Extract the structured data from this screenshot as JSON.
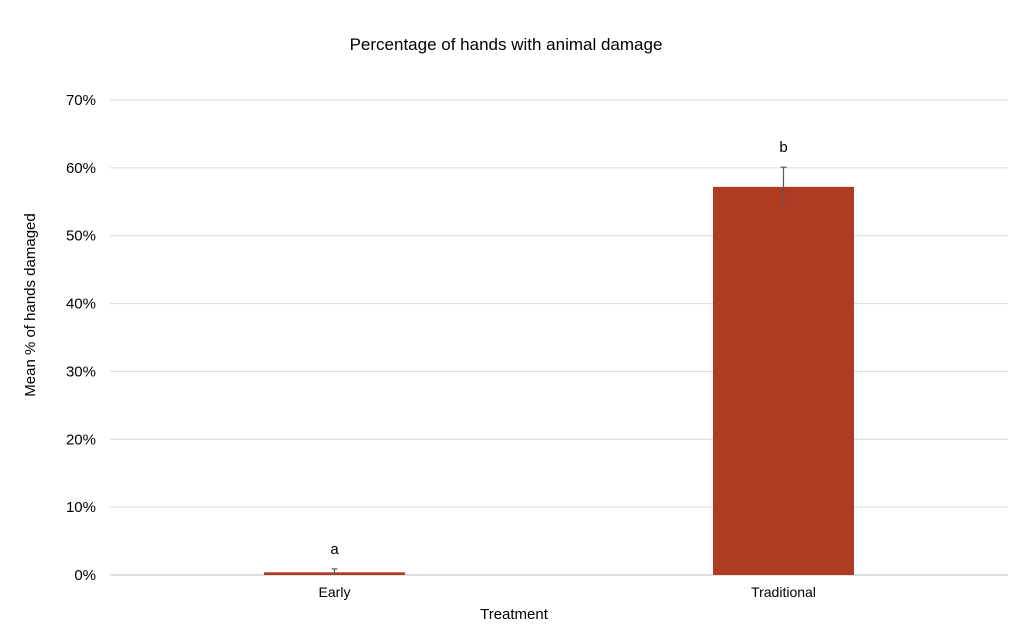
{
  "chart_data": {
    "type": "bar",
    "title": "Percentage of hands with animal damage",
    "xlabel": "Treatment",
    "ylabel": "Mean % of hands damaged",
    "categories": [
      "Early",
      "Traditional"
    ],
    "values": [
      0.4,
      57.2
    ],
    "error": [
      0.5,
      2.9
    ],
    "significance_labels": [
      "a",
      "b"
    ],
    "ylim": [
      0,
      70
    ],
    "yticks": [
      0,
      10,
      20,
      30,
      40,
      50,
      60,
      70
    ],
    "ytick_labels": [
      "0%",
      "10%",
      "20%",
      "30%",
      "40%",
      "50%",
      "60%",
      "70%"
    ],
    "bar_color": "#ae3b22",
    "grid": true,
    "legend": "none"
  }
}
